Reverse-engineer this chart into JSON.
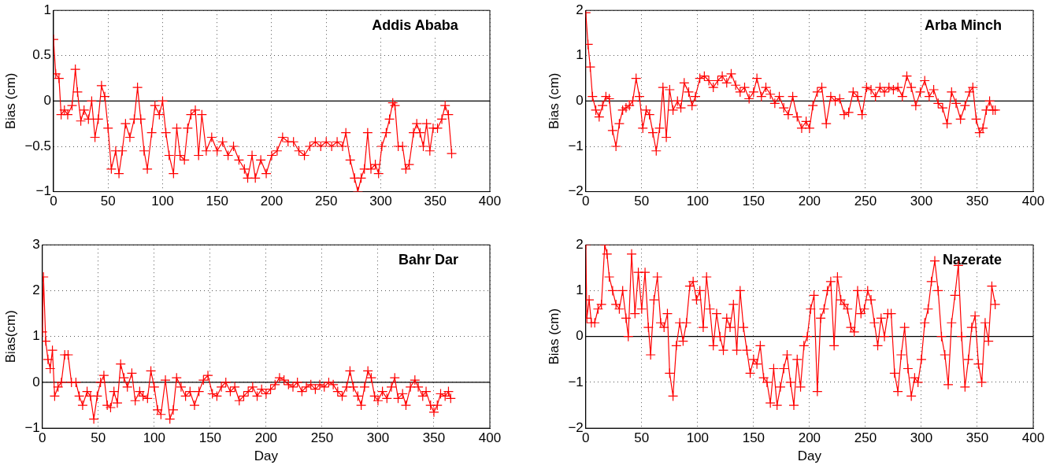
{
  "chart_data": [
    {
      "type": "line",
      "title": "Addis Ababa",
      "ylabel": "Bias (cm)",
      "color": "#ff0000",
      "marker": "cross",
      "grid": true,
      "xlim": [
        0,
        400
      ],
      "xticks": [
        0,
        50,
        100,
        150,
        200,
        250,
        300,
        350,
        400
      ],
      "ylim": [
        -1,
        1
      ],
      "yticks": [
        -1,
        -0.5,
        0,
        0.5,
        1
      ],
      "ref_lines": [
        {
          "axis": "y",
          "value": 0,
          "color": "#000000"
        }
      ],
      "x": [
        0,
        2,
        5,
        7,
        10,
        13,
        17,
        20,
        22,
        25,
        28,
        32,
        35,
        38,
        41,
        44,
        47,
        50,
        53,
        57,
        60,
        63,
        66,
        70,
        74,
        77,
        80,
        83,
        86,
        90,
        93,
        97,
        100,
        103,
        106,
        110,
        113,
        116,
        120,
        123,
        126,
        130,
        133,
        136,
        140,
        145,
        150,
        155,
        160,
        165,
        170,
        175,
        178,
        182,
        185,
        190,
        195,
        200,
        205,
        210,
        215,
        220,
        225,
        230,
        235,
        240,
        245,
        250,
        255,
        260,
        265,
        268,
        272,
        276,
        279,
        282,
        285,
        288,
        291,
        295,
        298,
        301,
        305,
        308,
        311,
        313,
        316,
        320,
        323,
        326,
        330,
        333,
        336,
        339,
        342,
        345,
        348,
        352,
        356,
        359,
        362,
        365
      ],
      "values": [
        0.68,
        0.3,
        0.25,
        -0.15,
        -0.1,
        -0.15,
        -0.05,
        0.35,
        0.1,
        -0.22,
        -0.1,
        -0.2,
        0.0,
        -0.4,
        -0.2,
        0.17,
        0.05,
        -0.3,
        -0.75,
        -0.55,
        -0.8,
        -0.55,
        -0.25,
        -0.4,
        -0.2,
        0.15,
        -0.2,
        -0.55,
        -0.75,
        -0.35,
        -0.05,
        -0.15,
        0.0,
        -0.35,
        -0.6,
        -0.8,
        -0.3,
        -0.6,
        -0.65,
        -0.3,
        -0.15,
        -0.1,
        -0.6,
        -0.15,
        -0.55,
        -0.4,
        -0.55,
        -0.45,
        -0.6,
        -0.5,
        -0.65,
        -0.75,
        -0.85,
        -0.6,
        -0.85,
        -0.65,
        -0.8,
        -0.6,
        -0.55,
        -0.4,
        -0.45,
        -0.45,
        -0.55,
        -0.6,
        -0.5,
        -0.45,
        -0.5,
        -0.45,
        -0.5,
        -0.45,
        -0.5,
        -0.35,
        -0.65,
        -0.85,
        -1.0,
        -0.85,
        -0.75,
        -0.35,
        -0.75,
        -0.7,
        -0.8,
        -0.5,
        -0.35,
        -0.2,
        -0.02,
        -0.05,
        -0.5,
        -0.5,
        -0.75,
        -0.7,
        -0.35,
        -0.25,
        -0.35,
        -0.5,
        -0.25,
        -0.55,
        -0.3,
        -0.3,
        -0.2,
        -0.05,
        -0.15,
        -0.58
      ]
    },
    {
      "type": "line",
      "title": "Arba Minch",
      "ylabel": "Bias (cm)",
      "color": "#ff0000",
      "marker": "cross",
      "grid": true,
      "xlim": [
        0,
        400
      ],
      "xticks": [
        0,
        50,
        100,
        150,
        200,
        250,
        300,
        350,
        400
      ],
      "ylim": [
        -2,
        2
      ],
      "yticks": [
        -2,
        -1,
        0,
        1,
        2
      ],
      "ref_lines": [
        {
          "axis": "y",
          "value": 0,
          "color": "#000000"
        }
      ],
      "x": [
        0,
        2,
        4,
        6,
        9,
        12,
        15,
        18,
        21,
        24,
        27,
        30,
        33,
        36,
        39,
        42,
        45,
        48,
        51,
        54,
        57,
        60,
        63,
        66,
        69,
        72,
        75,
        78,
        82,
        85,
        88,
        92,
        95,
        98,
        102,
        106,
        110,
        114,
        118,
        122,
        126,
        130,
        134,
        138,
        142,
        146,
        150,
        153,
        157,
        161,
        165,
        169,
        173,
        177,
        181,
        185,
        189,
        193,
        197,
        200,
        203,
        207,
        211,
        215,
        219,
        223,
        227,
        231,
        235,
        239,
        243,
        247,
        251,
        255,
        259,
        263,
        267,
        271,
        275,
        279,
        283,
        287,
        291,
        295,
        299,
        303,
        307,
        311,
        315,
        319,
        323,
        327,
        331,
        335,
        339,
        343,
        346,
        349,
        352,
        355,
        358,
        361,
        364,
        366
      ],
      "values": [
        1.95,
        1.25,
        0.75,
        0.1,
        -0.2,
        -0.35,
        -0.1,
        0.1,
        0.05,
        -0.65,
        -1.0,
        -0.5,
        -0.2,
        -0.15,
        -0.1,
        0.0,
        0.5,
        0.1,
        -0.6,
        -0.2,
        -0.3,
        -0.7,
        -1.1,
        -0.6,
        0.3,
        -0.8,
        0.25,
        -0.2,
        0.0,
        -0.15,
        0.4,
        0.2,
        -0.1,
        0.1,
        0.5,
        0.55,
        0.45,
        0.3,
        0.45,
        0.55,
        0.4,
        0.6,
        0.35,
        0.2,
        0.3,
        0.05,
        0.2,
        0.5,
        0.1,
        0.3,
        0.15,
        -0.05,
        0.1,
        -0.15,
        -0.3,
        0.1,
        -0.35,
        -0.6,
        -0.45,
        -0.6,
        -0.1,
        0.2,
        0.3,
        -0.5,
        0.1,
        0.0,
        0.05,
        -0.3,
        -0.25,
        0.2,
        0.1,
        -0.3,
        0.3,
        0.25,
        0.1,
        0.3,
        0.2,
        0.3,
        0.25,
        0.3,
        0.1,
        0.55,
        0.3,
        -0.1,
        0.2,
        0.45,
        0.1,
        0.25,
        -0.05,
        -0.15,
        -0.5,
        0.2,
        -0.05,
        -0.4,
        -0.1,
        0.2,
        0.3,
        -0.4,
        -0.7,
        -0.6,
        -0.2,
        0.0,
        -0.2,
        -0.2
      ]
    },
    {
      "type": "line",
      "title": "Bahr Dar",
      "xlabel": "Day",
      "ylabel": "Bias(cm)",
      "color": "#ff0000",
      "marker": "cross",
      "grid": true,
      "xlim": [
        0,
        400
      ],
      "xticks": [
        0,
        50,
        100,
        150,
        200,
        250,
        300,
        350,
        400
      ],
      "ylim": [
        -1,
        3
      ],
      "yticks": [
        -1,
        0,
        1,
        2,
        3
      ],
      "ref_lines": [
        {
          "axis": "y",
          "value": 0,
          "color": "#000000"
        }
      ],
      "x": [
        0,
        1,
        3,
        5,
        7,
        9,
        11,
        14,
        17,
        20,
        23,
        26,
        30,
        33,
        36,
        40,
        43,
        46,
        49,
        52,
        55,
        58,
        61,
        64,
        67,
        70,
        73,
        76,
        80,
        83,
        87,
        90,
        94,
        97,
        100,
        103,
        106,
        110,
        114,
        117,
        120,
        124,
        128,
        132,
        136,
        140,
        144,
        148,
        152,
        156,
        160,
        164,
        168,
        172,
        176,
        180,
        184,
        188,
        192,
        196,
        200,
        204,
        208,
        212,
        216,
        220,
        224,
        228,
        232,
        236,
        240,
        244,
        248,
        252,
        256,
        260,
        264,
        268,
        272,
        275,
        278,
        282,
        285,
        288,
        291,
        294,
        297,
        300,
        304,
        308,
        312,
        315,
        318,
        322,
        325,
        329,
        333,
        336,
        340,
        343,
        347,
        350,
        353,
        356,
        360,
        363,
        365
      ],
      "values": [
        1.1,
        2.3,
        0.9,
        0.5,
        0.3,
        0.7,
        -0.3,
        -0.1,
        0.0,
        0.6,
        0.6,
        0.0,
        0.0,
        -0.3,
        -0.5,
        -0.2,
        -0.3,
        -0.8,
        -0.3,
        0.0,
        0.15,
        -0.5,
        -0.55,
        -0.2,
        -0.45,
        0.4,
        0.1,
        -0.1,
        0.2,
        -0.4,
        -0.2,
        -0.3,
        -0.35,
        0.25,
        -0.1,
        -0.6,
        -0.7,
        0.05,
        -0.8,
        -0.6,
        0.1,
        -0.1,
        -0.3,
        -0.2,
        -0.5,
        -0.2,
        0.05,
        0.15,
        -0.25,
        -0.3,
        -0.1,
        0.0,
        -0.2,
        -0.1,
        -0.4,
        -0.3,
        -0.2,
        -0.1,
        -0.3,
        -0.15,
        -0.25,
        -0.15,
        -0.05,
        0.1,
        0.05,
        -0.05,
        -0.1,
        0.0,
        -0.2,
        -0.1,
        -0.05,
        -0.15,
        -0.05,
        -0.1,
        0.0,
        -0.05,
        -0.2,
        -0.3,
        -0.1,
        0.25,
        -0.1,
        -0.3,
        -0.5,
        -0.1,
        0.25,
        0.1,
        -0.3,
        -0.4,
        -0.2,
        -0.35,
        -0.1,
        0.1,
        -0.35,
        -0.25,
        -0.5,
        -0.1,
        0.05,
        -0.1,
        -0.3,
        -0.2,
        -0.5,
        -0.65,
        -0.5,
        -0.25,
        -0.3,
        -0.2,
        -0.35
      ]
    },
    {
      "type": "line",
      "title": "Nazerate",
      "xlabel": "Day",
      "ylabel": "Bias (cm)",
      "color": "#ff0000",
      "marker": "cross",
      "grid": true,
      "xlim": [
        0,
        400
      ],
      "xticks": [
        0,
        50,
        100,
        150,
        200,
        250,
        300,
        350,
        400
      ],
      "ylim": [
        -2,
        2
      ],
      "yticks": [
        -2,
        -1,
        0,
        1,
        2
      ],
      "ref_lines": [
        {
          "axis": "y",
          "value": 0,
          "color": "#000000"
        }
      ],
      "x": [
        0,
        1,
        3,
        5,
        8,
        11,
        14,
        17,
        19,
        21,
        24,
        27,
        30,
        33,
        36,
        38,
        41,
        44,
        47,
        50,
        53,
        56,
        58,
        61,
        64,
        67,
        70,
        73,
        75,
        78,
        81,
        84,
        87,
        90,
        93,
        96,
        99,
        102,
        105,
        108,
        111,
        114,
        117,
        120,
        123,
        126,
        129,
        132,
        135,
        138,
        141,
        144,
        147,
        150,
        153,
        156,
        159,
        162,
        165,
        168,
        171,
        174,
        177,
        180,
        183,
        186,
        189,
        192,
        195,
        198,
        201,
        204,
        207,
        210,
        213,
        216,
        219,
        222,
        225,
        228,
        231,
        234,
        237,
        240,
        243,
        246,
        249,
        252,
        255,
        258,
        261,
        264,
        267,
        270,
        273,
        276,
        279,
        282,
        285,
        288,
        291,
        294,
        297,
        300,
        303,
        306,
        309,
        312,
        315,
        318,
        321,
        324,
        327,
        330,
        333,
        336,
        339,
        342,
        345,
        348,
        351,
        354,
        357,
        360,
        363,
        366
      ],
      "values": [
        2.0,
        0.4,
        0.8,
        0.3,
        0.3,
        0.6,
        0.7,
        2.0,
        1.8,
        1.3,
        1.0,
        0.7,
        0.6,
        1.0,
        0.4,
        0.0,
        1.8,
        0.5,
        1.4,
        0.6,
        1.4,
        0.2,
        -0.4,
        0.8,
        1.3,
        0.3,
        0.2,
        0.5,
        -0.8,
        -1.3,
        -0.2,
        0.3,
        -0.1,
        0.3,
        1.1,
        1.2,
        0.8,
        1.0,
        0.2,
        1.3,
        0.6,
        -0.2,
        0.5,
        0.0,
        -0.3,
        0.4,
        0.2,
        0.7,
        -0.3,
        1.0,
        0.2,
        -0.3,
        -0.8,
        -0.5,
        -0.6,
        -0.2,
        -0.9,
        -1.0,
        -1.45,
        -0.7,
        -1.5,
        -1.1,
        -0.7,
        -0.4,
        -1.0,
        -1.5,
        -0.5,
        -1.1,
        -0.2,
        0.0,
        0.6,
        0.9,
        -1.2,
        0.4,
        0.6,
        1.0,
        1.2,
        -0.2,
        1.3,
        0.8,
        0.7,
        0.6,
        0.2,
        0.1,
        1.0,
        0.5,
        0.6,
        1.0,
        0.8,
        0.3,
        -0.2,
        0.4,
        0.0,
        0.5,
        0.5,
        -0.8,
        -1.2,
        -0.4,
        0.2,
        -0.7,
        -1.3,
        -0.9,
        -1.0,
        -0.5,
        0.3,
        0.6,
        1.2,
        1.65,
        1.0,
        0.0,
        -0.4,
        -1.05,
        0.3,
        0.9,
        1.55,
        0.0,
        -1.1,
        -0.5,
        0.2,
        0.45,
        -0.6,
        -1.0,
        0.3,
        -0.1,
        1.1,
        0.7
      ]
    }
  ]
}
